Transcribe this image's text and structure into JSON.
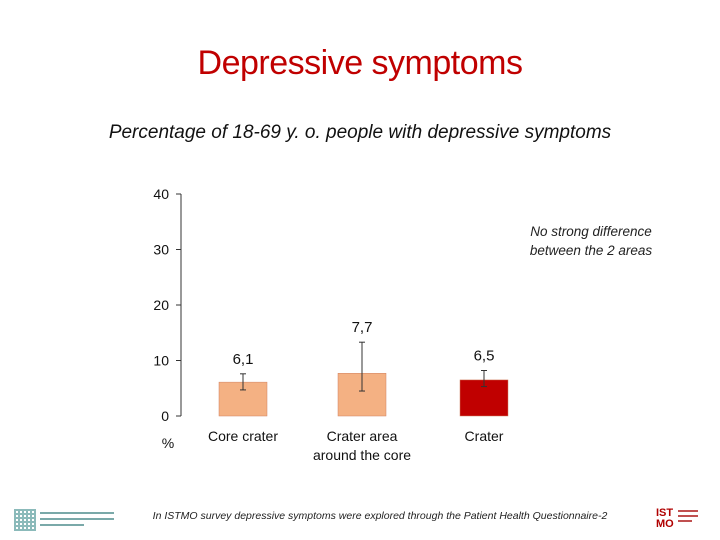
{
  "slide": {
    "title": "Depressive symptoms",
    "subtitle": "Percentage of  18-69 y. o. people  with depressive symptoms",
    "note": "No strong difference between the 2 areas",
    "footnote": "In ISTMO survey depressive symptoms were explored through the Patient Health Questionnaire-2",
    "logo_left_icon": "institute-logo",
    "logo_right_text": "IST MO"
  },
  "chart_data": {
    "type": "bar",
    "categories": [
      "Core crater",
      "Crater area around the core",
      "Crater"
    ],
    "category_lines": [
      [
        "Core crater"
      ],
      [
        "Crater area",
        "around the core"
      ],
      [
        "Crater"
      ]
    ],
    "values": [
      6.1,
      7.7,
      6.5
    ],
    "value_labels": [
      "6,1",
      "7,7",
      "6,5"
    ],
    "error_low": [
      4.7,
      4.5,
      5.3
    ],
    "error_high": [
      7.6,
      13.3,
      8.2
    ],
    "colors": [
      "#f4b183",
      "#f4b183",
      "#c00000"
    ],
    "ylim": [
      0,
      40
    ],
    "yticks": [
      0,
      10,
      20,
      30,
      40
    ],
    "ylabel": "%",
    "grid": false
  }
}
